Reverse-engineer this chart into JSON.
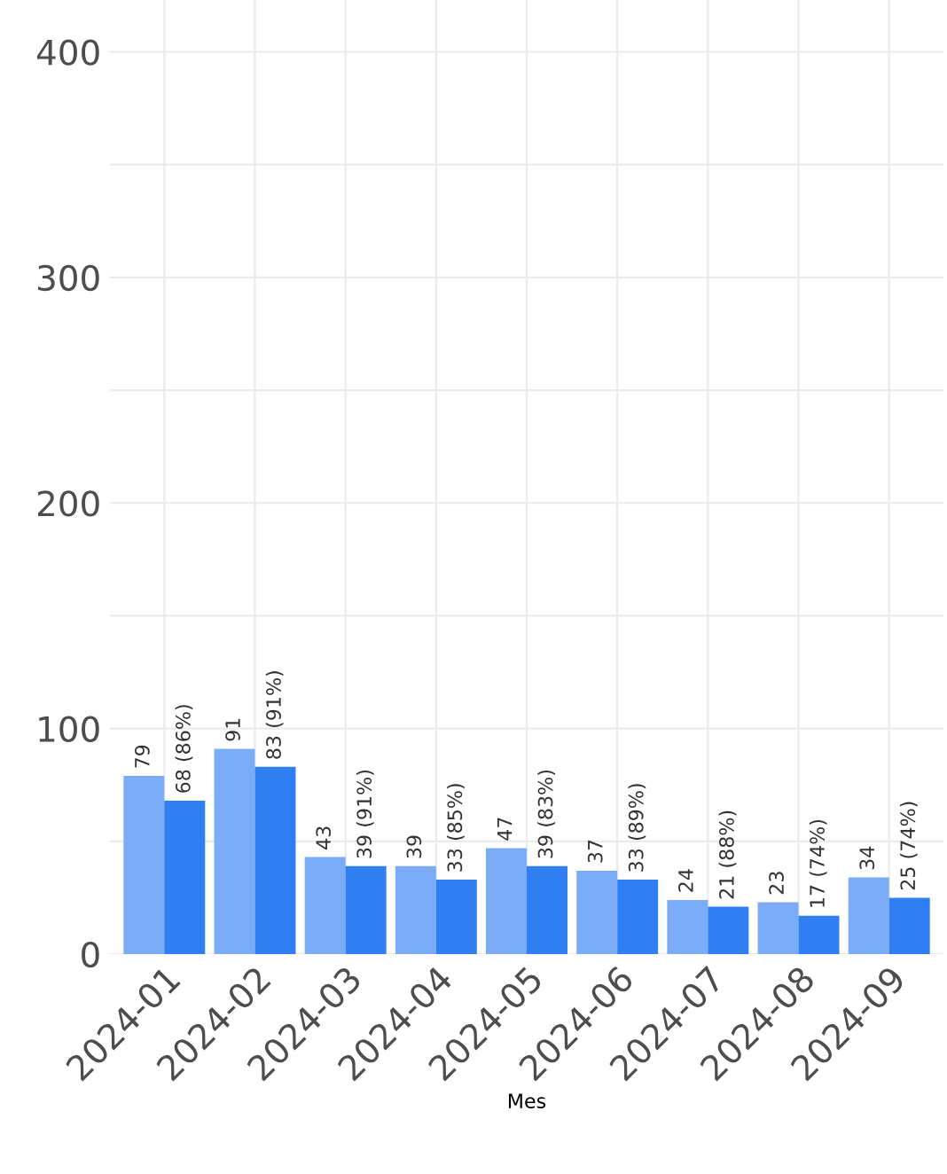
{
  "chart_data": {
    "type": "bar",
    "xlabel": "Mes",
    "categories": [
      "2024-01",
      "2024-02",
      "2024-03",
      "2024-04",
      "2024-05",
      "2024-06",
      "2024-07",
      "2024-08",
      "2024-09"
    ],
    "series": [
      {
        "color": "#7aacf7",
        "values": [
          79,
          91,
          43,
          39,
          47,
          37,
          24,
          23,
          34
        ],
        "value_labels": [
          "79",
          "91",
          "43",
          "39",
          "47",
          "37",
          "24",
          "23",
          "34"
        ]
      },
      {
        "color": "#2f7ff2",
        "values": [
          68,
          83,
          39,
          33,
          39,
          33,
          21,
          17,
          25
        ],
        "value_labels": [
          "68 (86%)",
          "83 (91%)",
          "39 (91%)",
          "33 (85%)",
          "39 (83%)",
          "33 (89%)",
          "21 (88%)",
          "17 (74%)",
          "25 (74%)"
        ]
      }
    ],
    "ylim": [
      0,
      423
    ],
    "yticks": [
      0,
      {
        "value": 50,
        "label": null
      },
      100,
      {
        "value": 150,
        "label": null
      },
      200,
      {
        "value": 250,
        "label": null
      },
      300,
      {
        "value": 350,
        "label": null
      },
      400
    ],
    "grid": true,
    "legend": false
  }
}
